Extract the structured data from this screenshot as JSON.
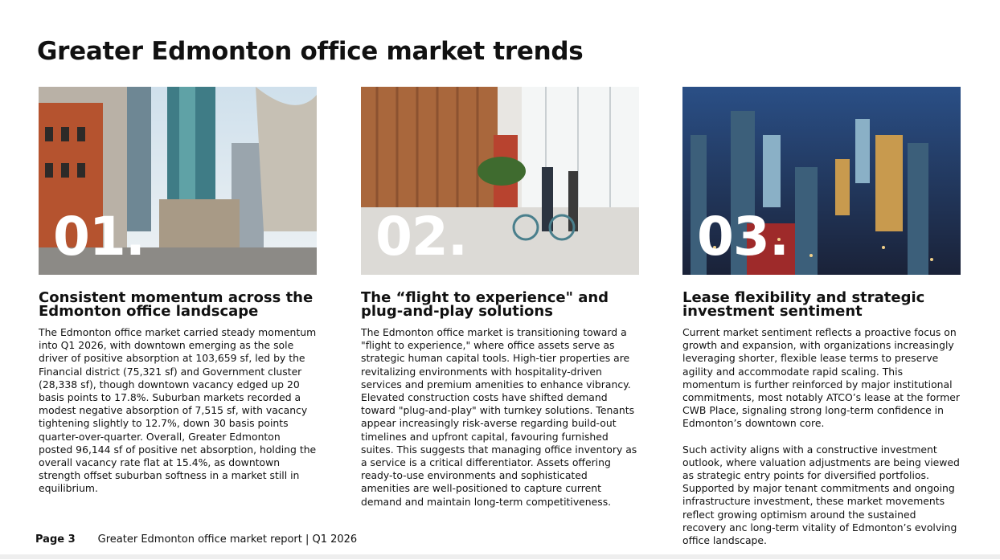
{
  "title": "Greater Edmonton office market trends",
  "columns": [
    {
      "number": "01.",
      "heading": "Consistent momentum across the Edmonton office landscape",
      "paragraphs": [
        "The Edmonton office market carried steady momentum into Q1 2026, with downtown emerging as the sole driver of positive absorption at 103,659 sf, led by the Financial district (75,321 sf) and Government cluster (28,338 sf), though downtown vacancy edged up 20 basis points to 17.8%. Suburban markets recorded a modest negative absorption of 7,515 sf, with vacancy tightening slightly to 12.7%, down 30 basis points quarter-over-quarter. Overall, Greater Edmonton posted 96,144 sf of positive net absorption, holding the overall vacancy rate flat at 15.4%, as downtown strength offset suburban softness in a market still in equilibrium."
      ]
    },
    {
      "number": "02.",
      "heading": "The “flight to experience\" and plug-and-play solutions",
      "paragraphs": [
        "The Edmonton office market is transitioning toward a \"flight to experience,\" where office assets serve as strategic human capital tools. High-tier properties are revitalizing environments with hospitality-driven services and premium amenities to enhance vibrancy. Elevated construction costs have shifted demand toward \"plug-and-play\" with turnkey solutions. Tenants appear increasingly risk-averse regarding build-out timelines and upfront capital, favouring furnished suites. This suggests that managing office inventory as a service is a critical differentiator. Assets offering ready-to-use environments and sophisticated amenities are well-positioned to capture current demand and maintain long-term competitiveness."
      ]
    },
    {
      "number": "03.",
      "heading": "Lease flexibility and strategic investment sentiment",
      "paragraphs": [
        "Current market sentiment reflects a proactive focus on growth and expansion, with organizations increasingly leveraging shorter, flexible lease terms to preserve agility and accommodate rapid scaling. This momentum is further reinforced by major institutional commitments, most notably ATCO’s lease at the former CWB Place, signaling strong long-term confidence in Edmonton’s downtown core.",
        "Such activity aligns with a constructive investment outlook, where valuation adjustments are being viewed as strategic entry points for diversified portfolios. Supported by major tenant commitments and ongoing infrastructure investment, these market movements reflect growing optimism around the sustained recovery anc long-term vitality of Edmonton’s evolving office landscape."
      ]
    }
  ],
  "footer": {
    "page": "Page 3",
    "report": "Greater Edmonton office market report | Q1 2026"
  }
}
